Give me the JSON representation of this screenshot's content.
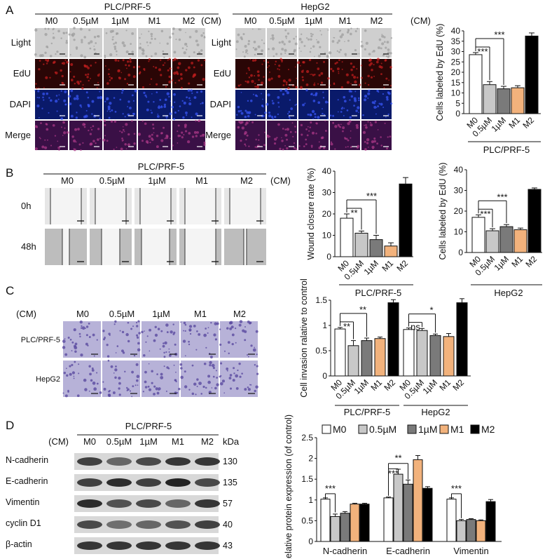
{
  "panel_labels": [
    "A",
    "B",
    "C",
    "D"
  ],
  "conditions": [
    "M0",
    "0.5µM",
    "1µM",
    "M1",
    "M2"
  ],
  "cm_label": "(CM)",
  "panelA": {
    "left_title": "PLC/PRF-5",
    "right_title": "HepG2",
    "row_labels": [
      "Light",
      "EdU",
      "DAPI",
      "Merge"
    ]
  },
  "panelB": {
    "title": "PLC/PRF-5",
    "row_labels": [
      "0h",
      "48h"
    ]
  },
  "panelC": {
    "row_labels": [
      "PLC/PRF-5",
      "HepG2"
    ]
  },
  "panelD": {
    "title": "PLC/PRF-5",
    "kda_label": "kDa",
    "bands": [
      {
        "name": "N-cadherin",
        "kda": "130"
      },
      {
        "name": "E-cadherin",
        "kda": "135"
      },
      {
        "name": "Vimentin",
        "kda": "57"
      },
      {
        "name": "cyclin D1",
        "kda": "40"
      },
      {
        "name": "β-actin",
        "kda": "43"
      }
    ]
  },
  "colors": {
    "M0": "#ffffff",
    "0.5µM": "#c8c8c8",
    "1µM": "#7a7a7a",
    "M1": "#f2b27c",
    "M2": "#000000"
  },
  "chart_data": [
    {
      "type": "bar",
      "id": "A-edu-plc",
      "ylabel": "Cells labeled by EdU (%)",
      "group_label": "PLC/PRF-5",
      "ylim": [
        0,
        40
      ],
      "yticks": [
        0,
        5,
        10,
        15,
        20,
        25,
        30,
        35,
        40
      ],
      "categories": [
        "M0",
        "0.5µM",
        "1µM",
        "M1",
        "M2"
      ],
      "values": [
        28.5,
        14,
        12,
        12.5,
        37.5
      ],
      "errors": [
        1,
        1.5,
        1.2,
        1,
        1.5
      ],
      "annotations": [
        "***",
        "***"
      ]
    },
    {
      "type": "bar",
      "id": "B-wound",
      "ylabel": "Wound closure rate (%)",
      "group_label": "PLC/PRF-5",
      "ylim": [
        0,
        40
      ],
      "yticks": [
        0,
        10,
        20,
        30,
        40
      ],
      "categories": [
        "M0",
        "0.5µM",
        "1µM",
        "M1",
        "M2"
      ],
      "values": [
        18,
        11,
        8,
        5,
        34
      ],
      "errors": [
        2,
        1,
        2,
        1.5,
        3
      ],
      "annotations": [
        "**",
        "***"
      ]
    },
    {
      "type": "bar",
      "id": "B-edu-hepg2",
      "ylabel": "Cells labeled by EdU (%)",
      "group_label": "HepG2",
      "ylim": [
        0,
        40
      ],
      "yticks": [
        0,
        10,
        20,
        30,
        40
      ],
      "categories": [
        "M0",
        "0.5µM",
        "1µM",
        "M1",
        "M2"
      ],
      "values": [
        17,
        10.5,
        12.5,
        11,
        30.5
      ],
      "errors": [
        1.2,
        1,
        1,
        0.8,
        0.7
      ],
      "annotations": [
        "***",
        "***"
      ]
    },
    {
      "type": "bar",
      "id": "C-invasion",
      "ylabel": "Cell invasion ralative to control",
      "ylim": [
        0,
        1.5
      ],
      "yticks": [
        0,
        0.5,
        1.0,
        1.5
      ],
      "categories": [
        "M0",
        "0.5µM",
        "1µM",
        "M1",
        "M2"
      ],
      "groups": [
        {
          "name": "PLC/PRF-5",
          "values": [
            0.93,
            0.6,
            0.7,
            0.74,
            1.45
          ],
          "errors": [
            0.03,
            0.1,
            0.05,
            0.03,
            0.06
          ],
          "annotations": [
            "**",
            "**"
          ]
        },
        {
          "name": "HepG2",
          "values": [
            0.92,
            0.9,
            0.8,
            0.78,
            1.45
          ],
          "errors": [
            0.03,
            0.04,
            0.03,
            0.06,
            0.08
          ],
          "annotations": [
            "ns",
            "*"
          ]
        }
      ]
    },
    {
      "type": "bar",
      "id": "D-protein",
      "ylabel": "Relative protein expression (of control)",
      "ylim": [
        0,
        2.5
      ],
      "yticks": [
        0,
        0.5,
        1.0,
        1.5,
        2.0,
        2.5
      ],
      "categories": [
        "N-cadherin",
        "E-cadherin",
        "Vimentin"
      ],
      "series": [
        {
          "name": "M0",
          "values": [
            1.02,
            1.05,
            1.02
          ],
          "errors": [
            0.03,
            0.02,
            0.03
          ]
        },
        {
          "name": "0.5µM",
          "values": [
            0.6,
            1.62,
            0.5
          ],
          "errors": [
            0.06,
            0.12,
            0.03
          ]
        },
        {
          "name": "1µM",
          "values": [
            0.68,
            1.38,
            0.53
          ],
          "errors": [
            0.04,
            0.1,
            0.02
          ]
        },
        {
          "name": "M1",
          "values": [
            0.9,
            1.97,
            0.5
          ],
          "errors": [
            0.02,
            0.1,
            0.02
          ]
        },
        {
          "name": "M2",
          "values": [
            0.9,
            1.28,
            0.96
          ],
          "errors": [
            0.02,
            0.04,
            0.05
          ]
        }
      ],
      "annotations": [
        "***",
        "***",
        "**",
        "***"
      ],
      "legend": "top"
    }
  ]
}
